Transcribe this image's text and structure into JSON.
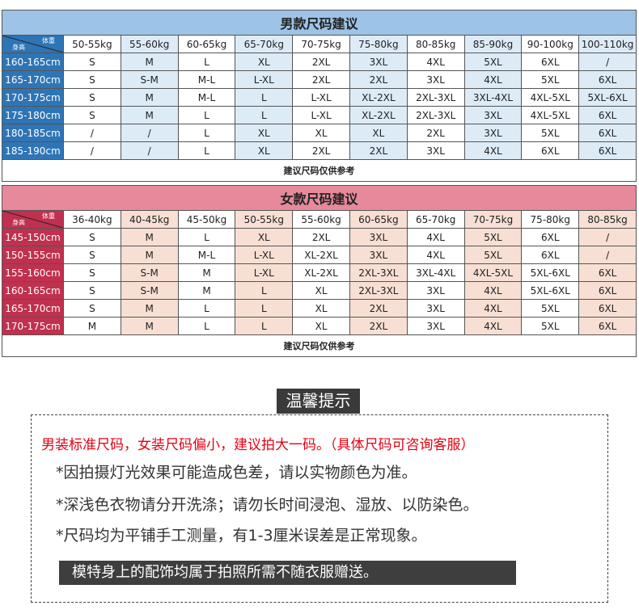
{
  "men": {
    "title": "男款尺码建议",
    "corner_weight": "体重",
    "corner_height": "身高",
    "weights": [
      "50-55kg",
      "55-60kg",
      "60-65kg",
      "65-70kg",
      "70-75kg",
      "75-80kg",
      "80-85kg",
      "85-90kg",
      "90-100kg",
      "100-110kg"
    ],
    "rows": [
      {
        "height": "160-165cm",
        "sizes": [
          "S",
          "M",
          "L",
          "XL",
          "2XL",
          "3XL",
          "4XL",
          "5XL",
          "6XL",
          "/"
        ]
      },
      {
        "height": "165-170cm",
        "sizes": [
          "S",
          "S-M",
          "M-L",
          "L-XL",
          "2XL",
          "2XL",
          "3XL",
          "4XL",
          "5XL",
          "6XL"
        ]
      },
      {
        "height": "170-175cm",
        "sizes": [
          "S",
          "M",
          "M-L",
          "L",
          "L-XL",
          "XL-2XL",
          "2XL-3XL",
          "3XL-4XL",
          "4XL-5XL",
          "5XL-6XL"
        ]
      },
      {
        "height": "175-180cm",
        "sizes": [
          "S",
          "M",
          "L",
          "L",
          "L-XL",
          "XL-2XL",
          "2XL-3XL",
          "3XL",
          "4XL-5XL",
          "6XL"
        ]
      },
      {
        "height": "180-185cm",
        "sizes": [
          "/",
          "/",
          "L",
          "XL",
          "XL",
          "XL",
          "2XL",
          "3XL",
          "5XL",
          "6XL"
        ]
      },
      {
        "height": "185-190cm",
        "sizes": [
          "/",
          "/",
          "L",
          "XL",
          "2XL",
          "2XL",
          "3XL",
          "4XL",
          "6XL",
          "6XL"
        ]
      }
    ],
    "note": "建议尺码仅供参考",
    "colors": {
      "title": "#9dc3e6",
      "side": "#2e75b6",
      "alt": "#ddebf7"
    }
  },
  "women": {
    "title": "女款尺码建议",
    "corner_weight": "体重",
    "corner_height": "身高",
    "weights": [
      "36-40kg",
      "40-45kg",
      "45-50kg",
      "50-55kg",
      "55-60kg",
      "60-65kg",
      "65-70kg",
      "70-75kg",
      "75-80kg",
      "80-85kg"
    ],
    "rows": [
      {
        "height": "145-150cm",
        "sizes": [
          "S",
          "M",
          "L",
          "XL",
          "2XL",
          "3XL",
          "4XL",
          "5XL",
          "6XL",
          "/"
        ]
      },
      {
        "height": "150-155cm",
        "sizes": [
          "S",
          "M",
          "M-L",
          "L-XL",
          "XL-2XL",
          "3XL",
          "4XL",
          "5XL",
          "6XL",
          "/"
        ]
      },
      {
        "height": "155-160cm",
        "sizes": [
          "S",
          "S-M",
          "M",
          "L-XL",
          "XL-2XL",
          "2XL-3XL",
          "3XL-4XL",
          "4XL-5XL",
          "5XL-6XL",
          "6XL"
        ]
      },
      {
        "height": "160-165cm",
        "sizes": [
          "S",
          "S-M",
          "M",
          "L",
          "XL",
          "2XL-3XL",
          "3XL",
          "4XL",
          "5XL-6XL",
          "6XL"
        ]
      },
      {
        "height": "165-170cm",
        "sizes": [
          "S",
          "M",
          "L",
          "L",
          "XL",
          "2XL",
          "3XL",
          "4XL",
          "5XL",
          "6XL"
        ]
      },
      {
        "height": "170-175cm",
        "sizes": [
          "M",
          "M",
          "L",
          "L",
          "XL",
          "2XL",
          "3XL",
          "4XL",
          "5XL",
          "6XL"
        ]
      }
    ],
    "note": "建议尺码仅供参考",
    "colors": {
      "title": "#e6899b",
      "side": "#c0304f",
      "alt": "#f8dfd4"
    }
  },
  "tips": {
    "title": "温馨提示",
    "highlight": "男装标准尺码，女装尺码偏小，建议拍大一码。（具体尺码可咨询客服）",
    "lines": [
      "*因拍摄灯光效果可能造成色差，请以实物颜色为准。",
      "*深浅色衣物请分开洗涤；请勿长时间浸泡、湿放、以防染色。",
      "*尺码均为平铺手工测量，有1-3厘米误差是正常现象。"
    ],
    "banner": "模特身上的配饰均属于拍照所需不随衣服赠送。"
  }
}
